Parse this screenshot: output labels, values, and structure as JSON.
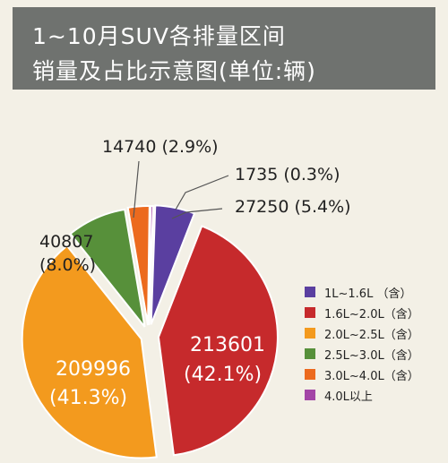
{
  "title": {
    "line1": "1~10月SUV各排量区间",
    "line2": "销量及占比示意图(单位:辆)"
  },
  "chart_data": {
    "type": "pie",
    "series": [
      {
        "name": "1L~1.6L（含）",
        "value": 27250,
        "label": "27250  (5.4%)",
        "color": "#5a3fa0"
      },
      {
        "name": "1.6L~2.0L（含）",
        "value": 213601,
        "label_lines": [
          "213601",
          "(42.1%)"
        ],
        "color": "#c62a2c"
      },
      {
        "name": "2.0L~2.5L（含）",
        "value": 209996,
        "label_lines": [
          "209996",
          "(41.3%)"
        ],
        "color": "#f39a1e"
      },
      {
        "name": "2.5L~3.0L（含）",
        "value": 40807,
        "label_lines": [
          "40807",
          "(8.0%)"
        ],
        "color": "#57903a"
      },
      {
        "name": "3.0L~4.0L（含）",
        "value": 14740,
        "label": "14740  (2.9%)",
        "color": "#ec6a1e"
      },
      {
        "name": "4.0L以上",
        "value": 1735,
        "label": "1735  (0.3%)",
        "color": "#a345a6"
      }
    ]
  },
  "legend": {
    "items": [
      {
        "label": "1L~1.6L （含）",
        "color": "#5a3fa0"
      },
      {
        "label": "1.6L~2.0L（含）",
        "color": "#c62a2c"
      },
      {
        "label": "2.0L~2.5L（含）",
        "color": "#f39a1e"
      },
      {
        "label": "2.5L~3.0L（含）",
        "color": "#57903a"
      },
      {
        "label": "3.0L~4.0L（含）",
        "color": "#ec6a1e"
      },
      {
        "label": "4.0L以上",
        "color": "#a345a6"
      }
    ]
  }
}
